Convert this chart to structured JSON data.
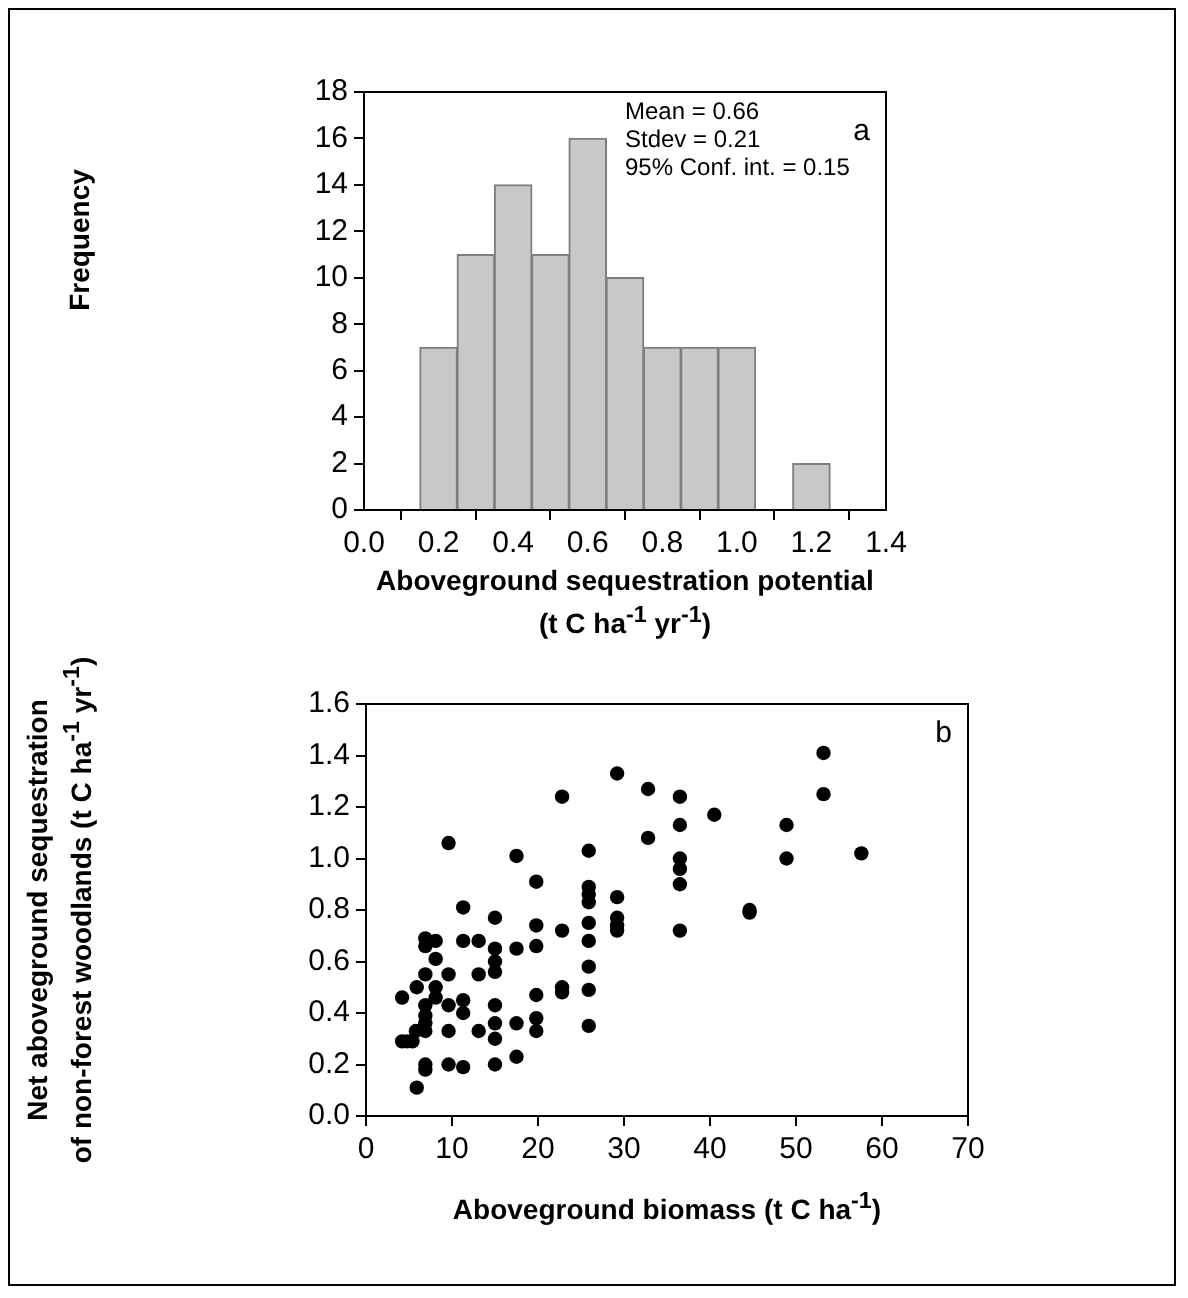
{
  "chart_data": [
    {
      "type": "histogram",
      "xlabel": "Aboveground sequestration potential\n(t C ha$^{-1}$ yr$^{-1}$)",
      "ylabel": "Frequency",
      "bins": [
        0.15,
        0.25,
        0.35,
        0.45,
        0.55,
        0.65,
        0.75,
        0.85,
        0.95,
        1.05,
        1.15,
        1.25
      ],
      "values": [
        7,
        11,
        14,
        11,
        16,
        10,
        7,
        7,
        7,
        0,
        2
      ],
      "color": "#c8c8c8",
      "xlim": [
        0,
        1.4
      ],
      "xticks": [
        {
          "value": 0,
          "label": "0.0"
        },
        {
          "value": 0.2,
          "label": "0.2"
        },
        {
          "value": 0.4,
          "label": "0.4"
        },
        {
          "value": 0.6,
          "label": "0.6"
        },
        {
          "value": 0.8,
          "label": "0.8"
        },
        {
          "value": 1,
          "label": "1.0"
        },
        {
          "value": 1.2,
          "label": "1.2"
        },
        {
          "value": 1.4,
          "label": "1.4"
        }
      ],
      "ylim": [
        0,
        18
      ],
      "yticks": [
        0,
        2,
        4,
        6,
        8,
        10,
        12,
        14,
        16,
        18
      ],
      "grid": false,
      "legend": false,
      "annotations": [
        "Mean = 0.66",
        "Stdev = 0.21",
        "95% Conf. int. = 0.15",
        "a"
      ]
    },
    {
      "type": "scatter",
      "xlabel": "Aboveground biomass (t C ha$^{-1}$)",
      "ylabel": "Net aboveground sequestration\nof non-forest woodlands (t C ha$^{-1}$ yr$^{-1}$)",
      "x": [
        4.2,
        4.2,
        4.8,
        5.4,
        5.9,
        5.8,
        5.9,
        6.9,
        6.9,
        6.9,
        6.9,
        6.9,
        6.9,
        6.9,
        6.9,
        6.9,
        8.1,
        8.1,
        8.1,
        8.1,
        9.6,
        9.6,
        9.6,
        9.6,
        9.6,
        11.3,
        11.3,
        11.3,
        11.3,
        11.3,
        13.1,
        13.1,
        13.1,
        15,
        15,
        15,
        15,
        15,
        15,
        15,
        15,
        17.5,
        17.5,
        17.5,
        17.5,
        19.8,
        19.8,
        19.8,
        19.8,
        19.8,
        19.8,
        22.8,
        22.8,
        22.8,
        22.8,
        25.9,
        25.9,
        25.9,
        25.9,
        25.9,
        25.9,
        25.9,
        25.9,
        25.9,
        29.2,
        29.2,
        29.2,
        29.2,
        29.2,
        32.8,
        32.8,
        36.5,
        36.5,
        36.5,
        36.5,
        36.5,
        36.5,
        40.5,
        44.6,
        44.6,
        48.9,
        48.9,
        53.2,
        53.2,
        57.6
      ],
      "values": [
        0.46,
        0.29,
        0.29,
        0.29,
        0.11,
        0.33,
        0.5,
        0.69,
        0.66,
        0.55,
        0.43,
        0.39,
        0.36,
        0.33,
        0.2,
        0.18,
        0.68,
        0.61,
        0.5,
        0.46,
        1.06,
        0.33,
        0.2,
        0.55,
        0.43,
        0.81,
        0.68,
        0.45,
        0.4,
        0.19,
        0.68,
        0.55,
        0.33,
        0.77,
        0.65,
        0.6,
        0.56,
        0.43,
        0.36,
        0.3,
        0.2,
        1.01,
        0.65,
        0.36,
        0.23,
        0.91,
        0.74,
        0.66,
        0.47,
        0.38,
        0.33,
        1.24,
        0.72,
        0.5,
        0.48,
        1.03,
        0.89,
        0.86,
        0.83,
        0.75,
        0.68,
        0.58,
        0.49,
        0.35,
        1.33,
        0.85,
        0.77,
        0.74,
        0.72,
        1.27,
        1.08,
        1.24,
        1.13,
        1,
        0.96,
        0.9,
        0.72,
        1.17,
        0.8,
        0.79,
        1.13,
        1,
        1.41,
        1.25,
        1.02
      ],
      "color": "#000000",
      "marker": "circle",
      "xlim": [
        0,
        70
      ],
      "xticks": [
        0,
        10,
        20,
        30,
        40,
        50,
        60,
        70
      ],
      "ylim": [
        0,
        1.6
      ],
      "yticks": [
        {
          "value": 0,
          "label": "0.0"
        },
        {
          "value": 0.2,
          "label": "0.2"
        },
        {
          "value": 0.4,
          "label": "0.4"
        },
        {
          "value": 0.6,
          "label": "0.6"
        },
        {
          "value": 0.8,
          "label": "0.8"
        },
        {
          "value": 1,
          "label": "1.0"
        },
        {
          "value": 1.2,
          "label": "1.2"
        },
        {
          "value": 1.4,
          "label": "1.4"
        },
        {
          "value": 1.6,
          "label": "1.6"
        }
      ],
      "grid": false,
      "legend": false,
      "annotations": [
        "b"
      ]
    }
  ]
}
